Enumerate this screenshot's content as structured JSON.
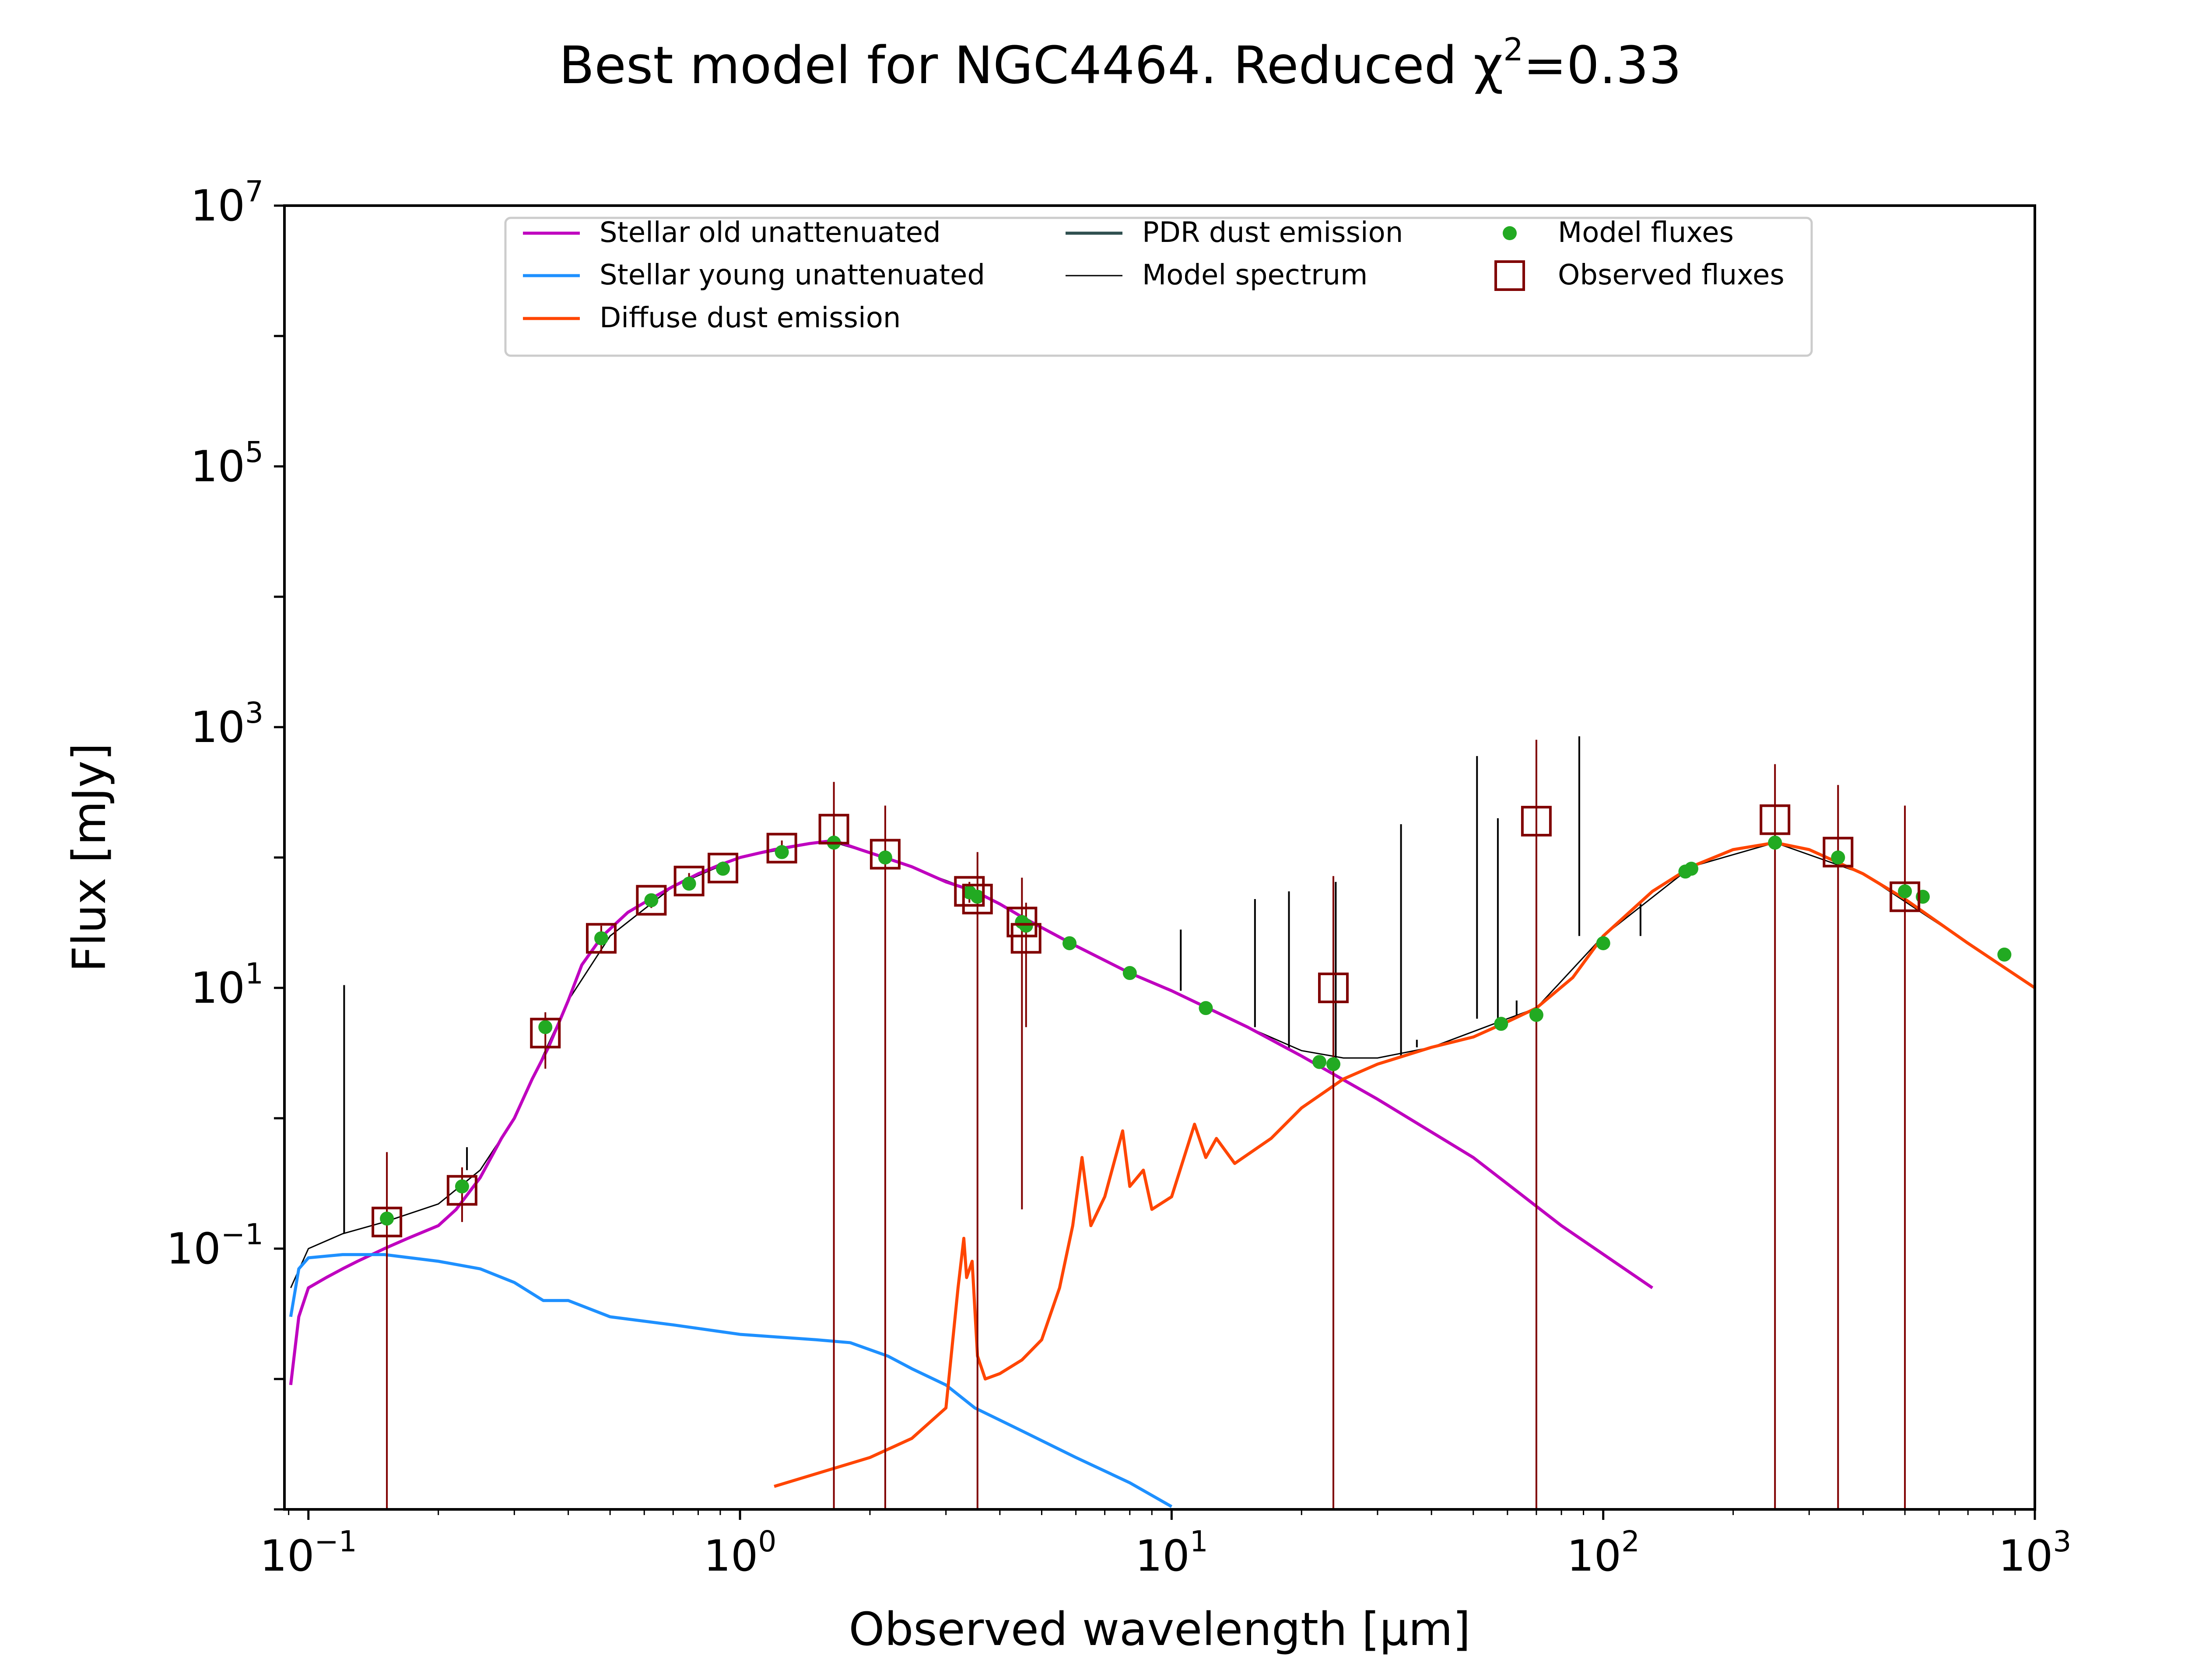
{
  "chart_data": {
    "type": "line",
    "title_text": "Best model for NGC4464. Reduced χ",
    "title_sup": "2",
    "title_suffix": "=0.33",
    "xlabel": "Observed wavelength [μm]",
    "ylabel": "Flux [mJy]",
    "xscale": "log",
    "yscale": "log",
    "xlim": [
      0.088,
      1000
    ],
    "ylim": [
      0.001,
      10000000
    ],
    "grid": false,
    "legend_position": "top-center",
    "x_ticks": [
      {
        "base": "10",
        "exp": "−1",
        "value": 0.1
      },
      {
        "base": "10",
        "exp": "0",
        "value": 1
      },
      {
        "base": "10",
        "exp": "1",
        "value": 10
      },
      {
        "base": "10",
        "exp": "2",
        "value": 100
      },
      {
        "base": "10",
        "exp": "3",
        "value": 1000
      }
    ],
    "y_ticks": [
      {
        "base": "10",
        "exp": "−1",
        "value": 0.1
      },
      {
        "base": "10",
        "exp": "1",
        "value": 10
      },
      {
        "base": "10",
        "exp": "3",
        "value": 1000
      },
      {
        "base": "10",
        "exp": "5",
        "value": 100000
      },
      {
        "base": "10",
        "exp": "7",
        "value": 10000000
      }
    ],
    "legend": [
      {
        "label": "Stellar old unattenuated",
        "kind": "line",
        "color": "#bf00bf"
      },
      {
        "label": "Stellar young unattenuated",
        "kind": "line",
        "color": "#1e90ff"
      },
      {
        "label": "Diffuse dust emission",
        "kind": "line",
        "color": "#ff4500"
      },
      {
        "label": "PDR dust emission",
        "kind": "line",
        "color": "#2f4f4f"
      },
      {
        "label": "Model spectrum",
        "kind": "thinline",
        "color": "#000000"
      },
      {
        "label": "Model fluxes",
        "kind": "dot",
        "color": "#22aa22"
      },
      {
        "label": "Observed fluxes",
        "kind": "square",
        "color": "#800000"
      }
    ],
    "series": [
      {
        "name": "Stellar old unattenuated",
        "color": "#bf00bf",
        "points": [
          [
            0.091,
            0.009
          ],
          [
            0.095,
            0.03
          ],
          [
            0.1,
            0.05
          ],
          [
            0.11,
            0.06
          ],
          [
            0.12,
            0.07
          ],
          [
            0.13,
            0.08
          ],
          [
            0.15,
            0.1
          ],
          [
            0.17,
            0.12
          ],
          [
            0.2,
            0.15
          ],
          [
            0.22,
            0.2
          ],
          [
            0.25,
            0.35
          ],
          [
            0.28,
            0.7
          ],
          [
            0.3,
            1.0
          ],
          [
            0.33,
            2.0
          ],
          [
            0.36,
            3.5
          ],
          [
            0.4,
            8
          ],
          [
            0.43,
            15
          ],
          [
            0.48,
            25
          ],
          [
            0.55,
            38
          ],
          [
            0.62,
            48
          ],
          [
            0.7,
            60
          ],
          [
            0.8,
            75
          ],
          [
            0.9,
            88
          ],
          [
            1.0,
            100
          ],
          [
            1.2,
            115
          ],
          [
            1.45,
            128
          ],
          [
            1.65,
            135
          ],
          [
            1.9,
            115
          ],
          [
            2.2,
            98
          ],
          [
            2.5,
            85
          ],
          [
            3.0,
            65
          ],
          [
            3.5,
            55
          ],
          [
            4.0,
            44
          ],
          [
            4.5,
            35
          ],
          [
            5.0,
            29
          ],
          [
            6.0,
            21
          ],
          [
            8.0,
            13
          ],
          [
            10.0,
            9.5
          ],
          [
            15,
            5
          ],
          [
            20,
            3
          ],
          [
            30,
            1.4
          ],
          [
            50,
            0.5
          ],
          [
            80,
            0.15
          ],
          [
            130,
            0.05
          ]
        ]
      },
      {
        "name": "Stellar young unattenuated",
        "color": "#1e90ff",
        "points": [
          [
            0.091,
            0.03
          ],
          [
            0.095,
            0.07
          ],
          [
            0.1,
            0.085
          ],
          [
            0.12,
            0.09
          ],
          [
            0.15,
            0.09
          ],
          [
            0.2,
            0.08
          ],
          [
            0.25,
            0.07
          ],
          [
            0.3,
            0.055
          ],
          [
            0.35,
            0.04
          ],
          [
            0.4,
            0.04
          ],
          [
            0.5,
            0.03
          ],
          [
            0.7,
            0.026
          ],
          [
            1.0,
            0.022
          ],
          [
            1.5,
            0.02
          ],
          [
            1.8,
            0.019
          ],
          [
            2.2,
            0.015
          ],
          [
            2.5,
            0.012
          ],
          [
            3.0,
            0.009
          ],
          [
            3.5,
            0.006
          ],
          [
            4.5,
            0.004
          ],
          [
            6,
            0.0025
          ],
          [
            8,
            0.0016
          ],
          [
            10,
            0.00105
          ]
        ]
      },
      {
        "name": "Diffuse dust emission",
        "color": "#ff4500",
        "points": [
          [
            1.2,
            0.0015
          ],
          [
            1.6,
            0.002
          ],
          [
            2.0,
            0.0025
          ],
          [
            2.5,
            0.0035
          ],
          [
            3.0,
            0.006
          ],
          [
            3.2,
            0.05
          ],
          [
            3.3,
            0.12
          ],
          [
            3.35,
            0.06
          ],
          [
            3.45,
            0.08
          ],
          [
            3.55,
            0.015
          ],
          [
            3.7,
            0.01
          ],
          [
            4.0,
            0.011
          ],
          [
            4.5,
            0.014
          ],
          [
            5.0,
            0.02
          ],
          [
            5.5,
            0.05
          ],
          [
            5.9,
            0.15
          ],
          [
            6.2,
            0.5
          ],
          [
            6.5,
            0.15
          ],
          [
            7.0,
            0.25
          ],
          [
            7.7,
            0.8
          ],
          [
            8.0,
            0.3
          ],
          [
            8.6,
            0.4
          ],
          [
            9.0,
            0.2
          ],
          [
            10.0,
            0.25
          ],
          [
            11.3,
            0.9
          ],
          [
            12.0,
            0.5
          ],
          [
            12.7,
            0.7
          ],
          [
            14,
            0.45
          ],
          [
            17,
            0.7
          ],
          [
            20,
            1.2
          ],
          [
            25,
            2.0
          ],
          [
            30,
            2.6
          ],
          [
            40,
            3.5
          ],
          [
            50,
            4.2
          ],
          [
            60,
            5.5
          ],
          [
            70,
            7
          ],
          [
            85,
            12
          ],
          [
            100,
            25
          ],
          [
            130,
            55
          ],
          [
            160,
            85
          ],
          [
            200,
            115
          ],
          [
            250,
            130
          ],
          [
            300,
            115
          ],
          [
            400,
            75
          ],
          [
            500,
            48
          ],
          [
            700,
            22
          ],
          [
            1000,
            10
          ]
        ]
      }
    ],
    "model_spectrum": {
      "name": "Model spectrum",
      "color": "#000000",
      "points": [
        [
          0.091,
          0.05
        ],
        [
          0.1,
          0.1
        ],
        [
          0.12,
          0.13
        ],
        [
          0.15,
          0.16
        ],
        [
          0.2,
          0.22
        ],
        [
          0.25,
          0.4
        ],
        [
          0.3,
          1.0
        ],
        [
          0.4,
          8
        ],
        [
          0.5,
          25
        ],
        [
          0.7,
          60
        ],
        [
          1.0,
          100
        ],
        [
          1.6,
          135
        ],
        [
          2.2,
          98
        ],
        [
          3.5,
          55
        ],
        [
          5,
          29
        ],
        [
          8,
          13
        ],
        [
          10,
          9.5
        ],
        [
          15,
          5
        ],
        [
          20,
          3.3
        ],
        [
          25,
          2.9
        ],
        [
          30,
          2.9
        ],
        [
          40,
          3.5
        ],
        [
          60,
          5.8
        ],
        [
          70,
          7
        ],
        [
          100,
          25
        ],
        [
          160,
          85
        ],
        [
          250,
          130
        ],
        [
          400,
          75
        ],
        [
          700,
          22
        ],
        [
          1000,
          10
        ]
      ],
      "lines": [
        [
          0.121,
          10.5
        ],
        [
          0.233,
          0.6
        ],
        [
          1.65,
          200
        ],
        [
          2.2,
          100
        ],
        [
          4.5,
          30
        ],
        [
          10.5,
          28
        ],
        [
          15.6,
          48
        ],
        [
          18.7,
          55
        ],
        [
          24,
          65
        ],
        [
          34,
          180
        ],
        [
          37,
          4
        ],
        [
          51,
          600
        ],
        [
          57,
          200
        ],
        [
          63,
          8
        ],
        [
          88,
          850
        ],
        [
          122,
          45
        ]
      ]
    },
    "model_fluxes": {
      "name": "Model fluxes",
      "color": "#22aa22",
      "points": [
        [
          0.152,
          0.17
        ],
        [
          0.227,
          0.3
        ],
        [
          0.354,
          5
        ],
        [
          0.477,
          24
        ],
        [
          0.623,
          47
        ],
        [
          0.762,
          63
        ],
        [
          0.913,
          82
        ],
        [
          1.25,
          110
        ],
        [
          1.65,
          130
        ],
        [
          2.17,
          100
        ],
        [
          3.4,
          54
        ],
        [
          3.55,
          50
        ],
        [
          4.5,
          32
        ],
        [
          4.6,
          30
        ],
        [
          5.8,
          22
        ],
        [
          8.0,
          13
        ],
        [
          12,
          7
        ],
        [
          22,
          2.7
        ],
        [
          23.7,
          2.6
        ],
        [
          58,
          5.3
        ],
        [
          70,
          6.2
        ],
        [
          100,
          22
        ],
        [
          155,
          78
        ],
        [
          160,
          82
        ],
        [
          250,
          130
        ],
        [
          350,
          100
        ],
        [
          500,
          55
        ],
        [
          550,
          50
        ],
        [
          850,
          18
        ]
      ]
    },
    "observed_fluxes": {
      "name": "Observed fluxes",
      "color": "#800000",
      "points": [
        {
          "x": 0.152,
          "y": 0.16,
          "lo": 0.001,
          "hi": 0.55
        },
        {
          "x": 0.227,
          "y": 0.28,
          "lo": 0.16,
          "hi": 0.42
        },
        {
          "x": 0.354,
          "y": 4.5,
          "lo": 2.4,
          "hi": 6.5
        },
        {
          "x": 0.477,
          "y": 24,
          "lo": 19,
          "hi": 30
        },
        {
          "x": 0.623,
          "y": 47,
          "lo": 41,
          "hi": 53
        },
        {
          "x": 0.762,
          "y": 66,
          "lo": 57,
          "hi": 76
        },
        {
          "x": 0.913,
          "y": 83,
          "lo": 73,
          "hi": 93
        },
        {
          "x": 1.25,
          "y": 118,
          "lo": 100,
          "hi": 135
        },
        {
          "x": 1.65,
          "y": 165,
          "lo": 0.001,
          "hi": 380
        },
        {
          "x": 2.17,
          "y": 106,
          "lo": 0.001,
          "hi": 250
        },
        {
          "x": 3.4,
          "y": 55,
          "lo": 45,
          "hi": 65
        },
        {
          "x": 3.55,
          "y": 48,
          "lo": 0.001,
          "hi": 110
        },
        {
          "x": 4.5,
          "y": 32,
          "lo": 0.2,
          "hi": 70
        },
        {
          "x": 4.6,
          "y": 24,
          "lo": 5,
          "hi": 45
        },
        {
          "x": 23.7,
          "y": 10,
          "lo": 0.001,
          "hi": 72
        },
        {
          "x": 70,
          "y": 190,
          "lo": 0.001,
          "hi": 800
        },
        {
          "x": 250,
          "y": 195,
          "lo": 0.001,
          "hi": 520
        },
        {
          "x": 350,
          "y": 110,
          "lo": 0.001,
          "hi": 360
        },
        {
          "x": 500,
          "y": 50,
          "lo": 0.001,
          "hi": 250
        }
      ]
    }
  }
}
